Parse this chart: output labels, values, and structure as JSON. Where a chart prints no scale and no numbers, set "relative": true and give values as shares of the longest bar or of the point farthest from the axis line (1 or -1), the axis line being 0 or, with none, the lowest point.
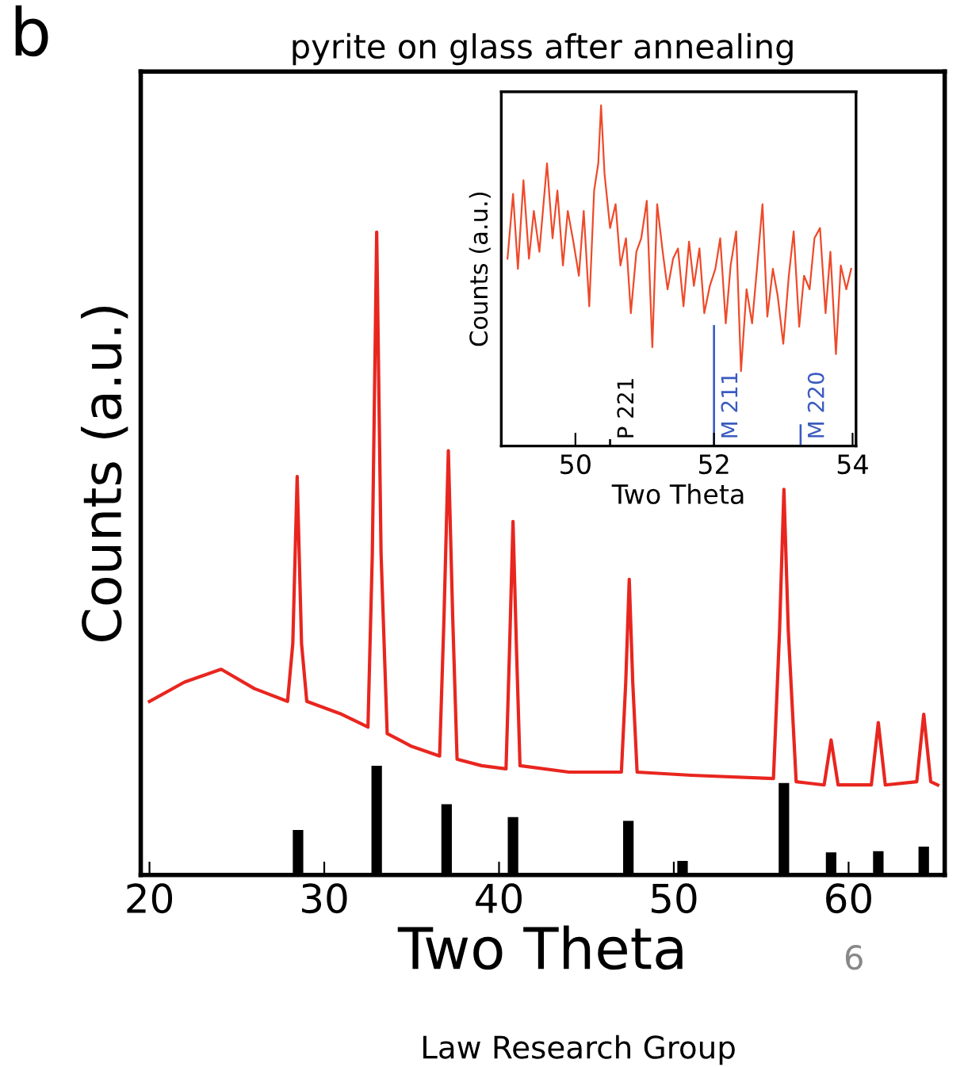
{
  "chart_data": [
    {
      "type": "line",
      "title": "pyrite on glass after annealing",
      "xlabel": "Two Theta",
      "ylabel": "Counts (a.u.)",
      "relative": true,
      "xlim": [
        19.5,
        65.5
      ],
      "xticks": [
        20,
        30,
        40,
        50,
        60
      ],
      "tick_labels": "x",
      "annotations": [
        "b",
        "6",
        "Law Research Group"
      ],
      "series": [
        {
          "color": "#e8261f",
          "x": [
            20.0,
            22.0,
            24.1,
            26.0,
            27.9,
            28.2,
            28.45,
            28.7,
            29.0,
            31.0,
            32.5,
            32.75,
            33.0,
            33.25,
            33.6,
            35.0,
            36.6,
            36.85,
            37.1,
            37.35,
            37.6,
            39.0,
            40.4,
            40.6,
            40.8,
            41.0,
            41.2,
            44.0,
            47.0,
            47.25,
            47.45,
            47.65,
            47.9,
            51.0,
            55.7,
            56.05,
            56.3,
            56.55,
            57.0,
            58.6,
            59.0,
            59.4,
            61.3,
            61.7,
            62.1,
            63.9,
            64.3,
            64.7,
            65.1
          ],
          "values": [
            0.27,
            0.3,
            0.32,
            0.29,
            0.27,
            0.36,
            0.62,
            0.36,
            0.27,
            0.25,
            0.23,
            0.5,
            1.0,
            0.5,
            0.22,
            0.2,
            0.185,
            0.4,
            0.66,
            0.4,
            0.18,
            0.17,
            0.165,
            0.35,
            0.55,
            0.35,
            0.17,
            0.16,
            0.16,
            0.3,
            0.46,
            0.3,
            0.16,
            0.155,
            0.15,
            0.38,
            0.6,
            0.38,
            0.145,
            0.14,
            0.21,
            0.14,
            0.14,
            0.237,
            0.14,
            0.145,
            0.25,
            0.145,
            0.14
          ]
        },
        {
          "type": "bar",
          "color": "#000000",
          "x": [
            28.5,
            33.0,
            37.0,
            40.8,
            47.4,
            50.5,
            56.3,
            59.0,
            61.7,
            64.3
          ],
          "values": [
            0.07,
            0.17,
            0.11,
            0.09,
            0.084,
            0.022,
            0.143,
            0.035,
            0.037,
            0.044
          ]
        }
      ]
    },
    {
      "type": "line",
      "xlabel": "Two Theta",
      "ylabel": "Counts (a.u.)",
      "relative": true,
      "xlim": [
        48.93,
        54.05
      ],
      "xticks": [
        50,
        52,
        54
      ],
      "tick_labels": "x",
      "annotations": [
        {
          "text": "P 221",
          "x": 50.5,
          "y": 0
        },
        {
          "text": "M 211",
          "x": 52.0,
          "y": 0
        },
        {
          "text": "M 220",
          "x": 53.25,
          "y": 0
        }
      ],
      "series": [
        {
          "color": "#ee4a2a",
          "x": [
            49.02,
            49.1,
            49.17,
            49.25,
            49.33,
            49.4,
            49.48,
            49.59,
            49.67,
            49.74,
            49.82,
            49.89,
            49.97,
            50.05,
            50.12,
            50.2,
            50.27,
            50.33,
            50.37,
            50.42,
            50.5,
            50.58,
            50.65,
            50.73,
            50.8,
            50.88,
            50.95,
            51.03,
            51.11,
            51.18,
            51.26,
            51.33,
            51.41,
            51.48,
            51.56,
            51.64,
            51.71,
            51.79,
            51.86,
            51.94,
            52.02,
            52.09,
            52.17,
            52.24,
            52.32,
            52.39,
            52.47,
            52.55,
            52.62,
            52.7,
            52.77,
            52.85,
            52.92,
            53.0,
            53.08,
            53.15,
            53.23,
            53.3,
            53.38,
            53.45,
            53.53,
            53.61,
            53.68,
            53.76,
            53.83,
            53.91,
            53.98
          ],
          "values": [
            0.55,
            0.74,
            0.52,
            0.78,
            0.55,
            0.69,
            0.57,
            0.83,
            0.61,
            0.75,
            0.53,
            0.69,
            0.6,
            0.5,
            0.69,
            0.41,
            0.75,
            0.83,
            1.0,
            0.8,
            0.64,
            0.71,
            0.53,
            0.61,
            0.39,
            0.57,
            0.61,
            0.72,
            0.29,
            0.71,
            0.57,
            0.46,
            0.55,
            0.58,
            0.41,
            0.6,
            0.47,
            0.58,
            0.39,
            0.47,
            0.52,
            0.61,
            0.36,
            0.53,
            0.63,
            0.22,
            0.46,
            0.36,
            0.52,
            0.71,
            0.38,
            0.52,
            0.44,
            0.3,
            0.5,
            0.63,
            0.35,
            0.5,
            0.46,
            0.61,
            0.64,
            0.39,
            0.57,
            0.27,
            0.53,
            0.46,
            0.52
          ]
        },
        {
          "type": "bar",
          "colors": [
            "#000000",
            "#3a5bbf",
            "#3a5bbf"
          ],
          "x": [
            50.5,
            52.0,
            53.25
          ],
          "values": [
            0.02,
            0.355,
            0.064
          ]
        }
      ]
    }
  ]
}
